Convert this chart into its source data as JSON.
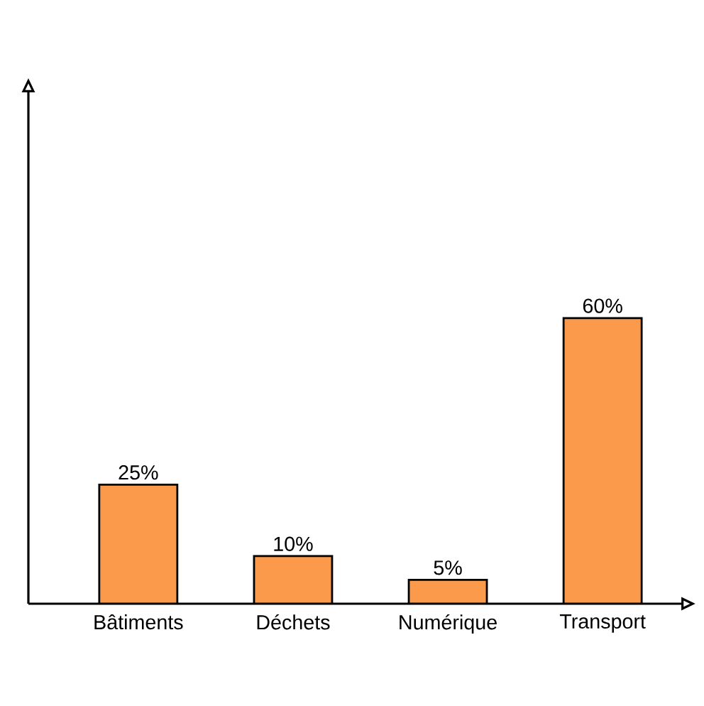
{
  "chart_data": {
    "type": "bar",
    "categories": [
      "Bâtiments",
      "Déchets",
      "Numérique",
      "Transport"
    ],
    "values": [
      25,
      10,
      5,
      60
    ],
    "value_labels": [
      "25%",
      "10%",
      "5%",
      "60%"
    ],
    "color": "#fb9a4b"
  }
}
